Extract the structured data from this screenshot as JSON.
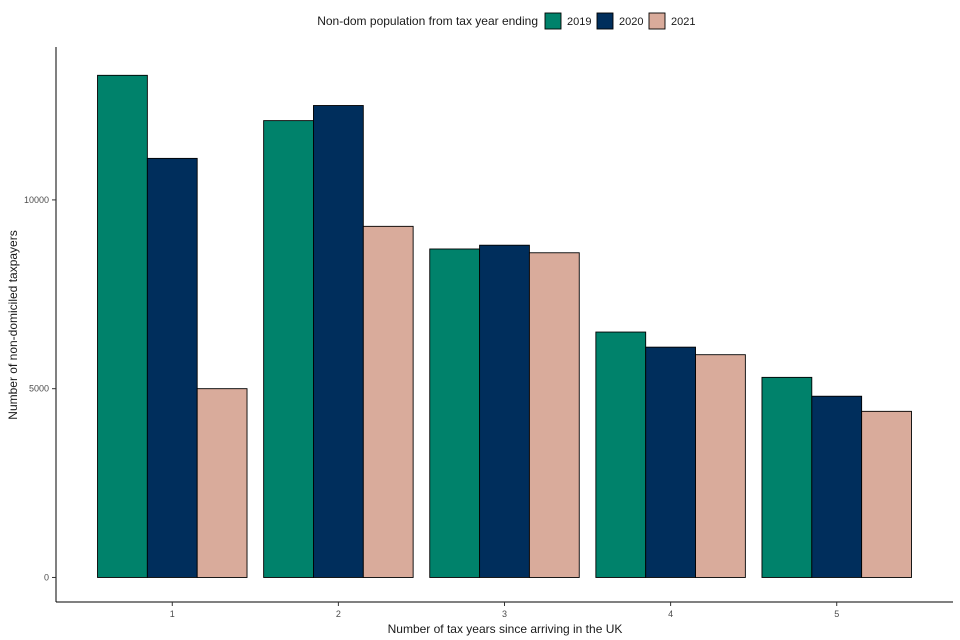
{
  "chart_data": {
    "type": "bar",
    "title": "",
    "legend_title": "Non-dom population from tax year ending",
    "legend_position": "top",
    "xlabel": "Number of tax years since arriving in the UK",
    "ylabel": "Number of non-domiciled taxpayers",
    "categories": [
      "1",
      "2",
      "3",
      "4",
      "5"
    ],
    "series": [
      {
        "name": "2019",
        "color": "#00826b",
        "values": [
          13300,
          12100,
          8700,
          6500,
          5300
        ]
      },
      {
        "name": "2020",
        "color": "#002e5c",
        "values": [
          11100,
          12500,
          8800,
          6100,
          4800
        ]
      },
      {
        "name": "2021",
        "color": "#d9ab9b",
        "values": [
          5000,
          9300,
          8600,
          5900,
          4400
        ]
      }
    ],
    "ylim": [
      -650,
      14050
    ],
    "yticks": [
      0,
      5000,
      10000
    ],
    "ytick_labels": [
      "0",
      "5000",
      "10000"
    ],
    "grid": false
  }
}
